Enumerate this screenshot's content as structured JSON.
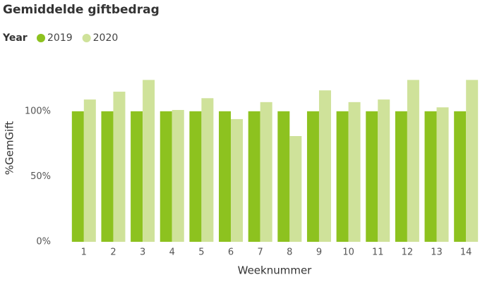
{
  "chart_data": {
    "type": "bar",
    "title": "Gemiddelde giftbedrag",
    "legend_title": "Year",
    "categories": [
      "1",
      "2",
      "3",
      "4",
      "5",
      "6",
      "7",
      "8",
      "9",
      "10",
      "11",
      "12",
      "13",
      "14"
    ],
    "series": [
      {
        "name": "2019",
        "color": "#8dc21f",
        "values": [
          100,
          100,
          100,
          100,
          100,
          100,
          100,
          100,
          100,
          100,
          100,
          100,
          100,
          100
        ]
      },
      {
        "name": "2020",
        "color": "#cfe29a",
        "values": [
          109,
          115,
          124,
          101,
          110,
          94,
          107,
          81,
          116,
          107,
          109,
          124,
          103,
          124
        ]
      }
    ],
    "x_label": "Weeknummer",
    "y_label": "%GemGift",
    "ylim": [
      0,
      135
    ],
    "yticks": [
      {
        "value": 0,
        "label": "0%"
      },
      {
        "value": 50,
        "label": "50%"
      },
      {
        "value": 100,
        "label": "100%"
      }
    ],
    "grid": false
  }
}
